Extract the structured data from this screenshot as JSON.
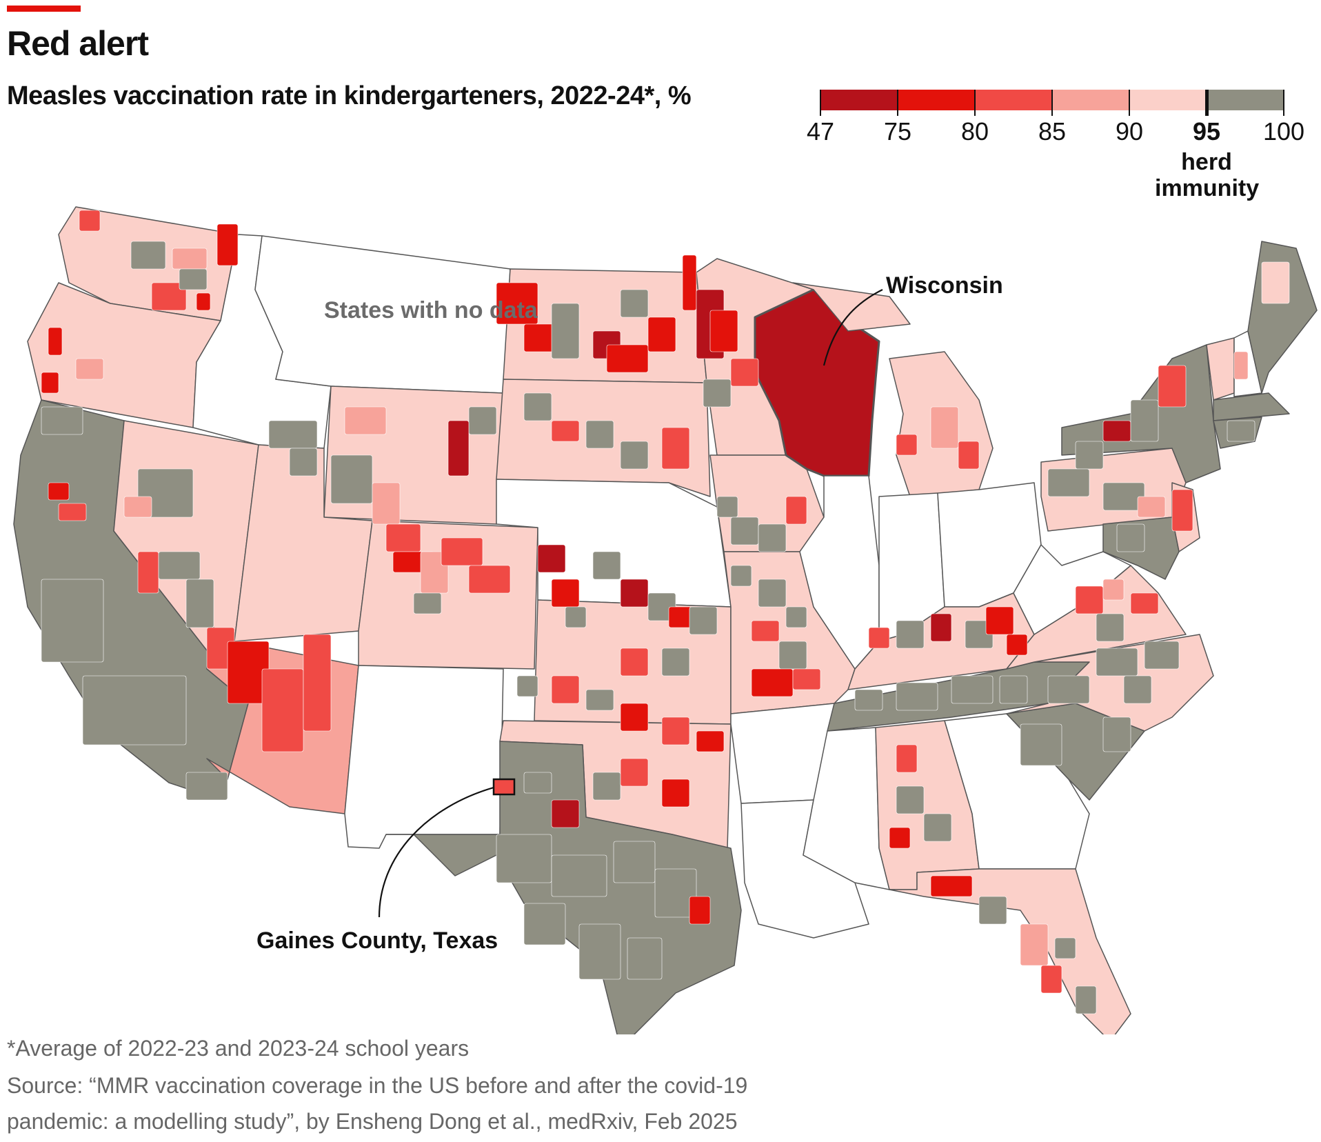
{
  "header": {
    "title": "Red alert",
    "subtitle": "Measles vaccination rate in kindergarteners, 2022-24*, %"
  },
  "legend": {
    "ticks": [
      "47",
      "75",
      "80",
      "85",
      "90",
      "95",
      "100"
    ],
    "highlight_tick": "95",
    "herd_label": "herd immunity",
    "bins": [
      {
        "from": 47,
        "to": 75,
        "color": "#b5121b"
      },
      {
        "from": 75,
        "to": 80,
        "color": "#e3120b"
      },
      {
        "from": 80,
        "to": 85,
        "color": "#f04a45"
      },
      {
        "from": 85,
        "to": 90,
        "color": "#f7a39a"
      },
      {
        "from": 90,
        "to": 95,
        "color": "#fbd0c9"
      },
      {
        "from": 95,
        "to": 100,
        "color": "#8f8f82"
      }
    ]
  },
  "map": {
    "no_data_label": "States with no data",
    "annotations": {
      "wisconsin": "Wisconsin",
      "gaines": "Gaines County, Texas"
    },
    "colors": {
      "very_low": "#b5121b",
      "low": "#e3120b",
      "mid": "#f04a45",
      "light": "#f7a39a",
      "pale": "#fbd0c9",
      "herd": "#8f8f82",
      "no_data": "#ffffff",
      "border": "#555555"
    },
    "states": [
      {
        "name": "Washington",
        "bin": "pale"
      },
      {
        "name": "Oregon",
        "bin": "pale"
      },
      {
        "name": "California",
        "bin": "herd"
      },
      {
        "name": "Nevada",
        "bin": "pale"
      },
      {
        "name": "Idaho",
        "bin": "no_data"
      },
      {
        "name": "Montana",
        "bin": "no_data"
      },
      {
        "name": "Wyoming",
        "bin": "pale"
      },
      {
        "name": "Utah",
        "bin": "pale"
      },
      {
        "name": "Arizona",
        "bin": "light"
      },
      {
        "name": "Colorado",
        "bin": "pale"
      },
      {
        "name": "New Mexico",
        "bin": "no_data"
      },
      {
        "name": "North Dakota",
        "bin": "pale"
      },
      {
        "name": "South Dakota",
        "bin": "pale"
      },
      {
        "name": "Nebraska",
        "bin": "no_data"
      },
      {
        "name": "Kansas",
        "bin": "pale"
      },
      {
        "name": "Oklahoma",
        "bin": "pale"
      },
      {
        "name": "Texas",
        "bin": "herd"
      },
      {
        "name": "Minnesota",
        "bin": "pale"
      },
      {
        "name": "Iowa",
        "bin": "pale"
      },
      {
        "name": "Missouri",
        "bin": "pale"
      },
      {
        "name": "Arkansas",
        "bin": "no_data"
      },
      {
        "name": "Louisiana",
        "bin": "no_data"
      },
      {
        "name": "Wisconsin",
        "bin": "very_low"
      },
      {
        "name": "Illinois",
        "bin": "no_data"
      },
      {
        "name": "Michigan",
        "bin": "pale"
      },
      {
        "name": "Indiana",
        "bin": "no_data"
      },
      {
        "name": "Ohio",
        "bin": "no_data"
      },
      {
        "name": "Kentucky",
        "bin": "pale"
      },
      {
        "name": "Tennessee",
        "bin": "herd"
      },
      {
        "name": "Mississippi",
        "bin": "no_data"
      },
      {
        "name": "Alabama",
        "bin": "pale"
      },
      {
        "name": "Georgia",
        "bin": "no_data"
      },
      {
        "name": "Florida",
        "bin": "pale"
      },
      {
        "name": "South Carolina",
        "bin": "herd"
      },
      {
        "name": "North Carolina",
        "bin": "pale"
      },
      {
        "name": "Virginia",
        "bin": "pale"
      },
      {
        "name": "West Virginia",
        "bin": "no_data"
      },
      {
        "name": "Pennsylvania",
        "bin": "pale"
      },
      {
        "name": "New York",
        "bin": "herd"
      },
      {
        "name": "Vermont",
        "bin": "pale"
      },
      {
        "name": "New Hampshire",
        "bin": "no_data"
      },
      {
        "name": "Maine",
        "bin": "herd"
      },
      {
        "name": "Massachusetts",
        "bin": "herd"
      },
      {
        "name": "Connecticut",
        "bin": "herd"
      },
      {
        "name": "New Jersey",
        "bin": "pale"
      },
      {
        "name": "Maryland",
        "bin": "herd"
      }
    ]
  },
  "footer": {
    "note": "*Average of 2022-23 and 2023-24 school years",
    "source_line1": "Source: “MMR vaccination coverage in the US before and after the covid-19",
    "source_line2": "pandemic: a modelling study”, by Ensheng Dong et al., medRxiv, Feb 2025"
  }
}
